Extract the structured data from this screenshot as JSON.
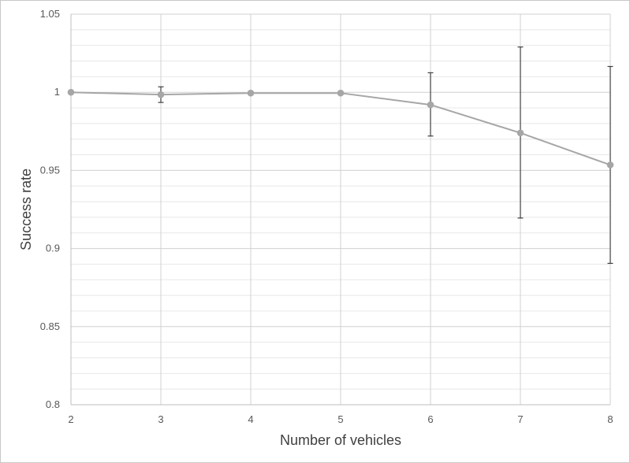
{
  "chart_data": {
    "type": "line",
    "title": "",
    "xlabel": "Number of vehicles",
    "ylabel": "Success rate",
    "x": [
      2,
      3,
      4,
      5,
      6,
      7,
      8
    ],
    "x_tick_labels": [
      "2",
      "3",
      "4",
      "5",
      "6",
      "7",
      "8"
    ],
    "y_tick_labels": [
      "0.8",
      "0.85",
      "0.9",
      "0.95",
      "1",
      "1.05"
    ],
    "ylim": [
      0.8,
      1.05
    ],
    "y_major_step": 0.05,
    "y_minor_step": 0.01,
    "grid": true,
    "legend": "none",
    "series": [
      {
        "values": [
          1.0,
          0.9985,
          0.9995,
          0.9995,
          0.992,
          0.974,
          0.9535
        ],
        "error_upper": [
          1.0,
          1.0035,
          1.0005,
          1.0,
          1.0125,
          1.029,
          1.0165
        ],
        "error_lower": [
          1.0,
          0.9935,
          0.9985,
          1.0,
          0.972,
          0.9195,
          0.8905
        ],
        "color": "#a6a6a6"
      }
    ],
    "colors": {
      "error_bar": "#404040",
      "grid_major": "#d0d0d0",
      "grid_minor": "#e8e8e8",
      "axis": "#bfbfbf"
    }
  }
}
